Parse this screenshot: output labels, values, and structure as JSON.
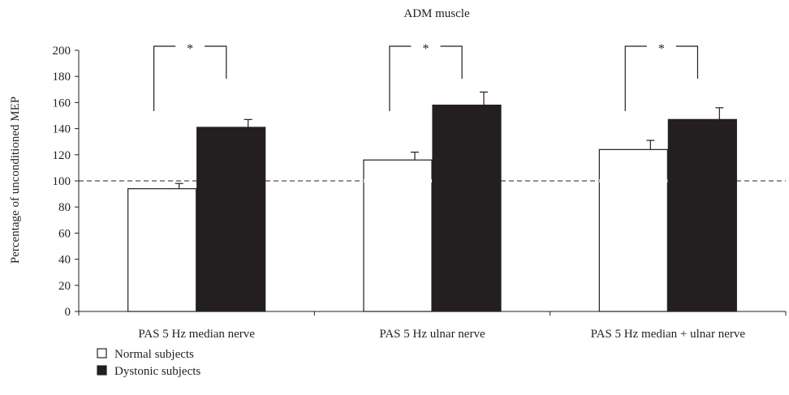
{
  "chart_data": {
    "type": "bar",
    "title": "ADM muscle",
    "ylabel": "Percentage of unconditioned MEP",
    "xlabel": "",
    "ylim": [
      0,
      200
    ],
    "yticks": [
      0,
      20,
      40,
      60,
      80,
      100,
      120,
      140,
      160,
      180,
      200
    ],
    "reference_line": 100,
    "categories": [
      "PAS 5 Hz median nerve",
      "PAS 5 Hz ulnar nerve",
      "PAS 5 Hz median + ulnar nerve"
    ],
    "series": [
      {
        "name": "Normal subjects",
        "color": "#ffffff",
        "values": [
          94,
          116,
          124
        ],
        "errors": [
          4,
          6,
          7
        ]
      },
      {
        "name": "Dystonic subjects",
        "color": "#231f20",
        "values": [
          141,
          158,
          147
        ],
        "errors": [
          6,
          10,
          9
        ]
      }
    ],
    "significance": [
      {
        "category": 0,
        "label": "*"
      },
      {
        "category": 1,
        "label": "*"
      },
      {
        "category": 2,
        "label": "*"
      }
    ],
    "legend_position": "bottom-left",
    "grid": false
  }
}
